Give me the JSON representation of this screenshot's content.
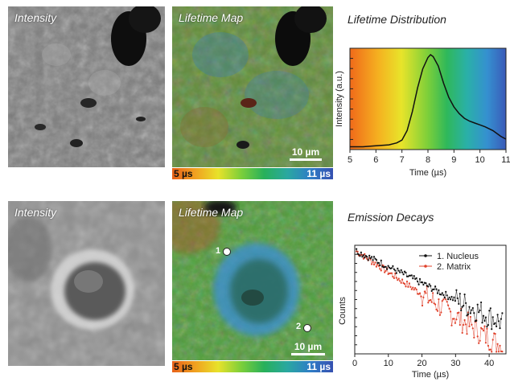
{
  "top_row": {
    "intensity_label": "Intensity",
    "lifetime_label": "Lifetime Map",
    "scale_bar": "10 µm",
    "colorbar": {
      "min_label": "5 µs",
      "max_label": "11 µs"
    },
    "distribution_title": "Lifetime Distribution"
  },
  "bottom_row": {
    "intensity_label": "Intensity",
    "lifetime_label": "Lifetime Map",
    "scale_bar": "10 µm",
    "marker_1": "1",
    "marker_2": "2",
    "colorbar": {
      "min_label": "5 µs",
      "max_label": "11 µs"
    },
    "decay_title": "Emission Decays"
  },
  "chart_data": [
    {
      "type": "line",
      "title": "Lifetime Distribution",
      "xlabel": "Time (µs)",
      "ylabel": "Intensity (a.u.)",
      "xlim": [
        5,
        11
      ],
      "xticks": [
        5,
        6,
        7,
        8,
        9,
        10,
        11
      ],
      "x": [
        5.0,
        5.5,
        6.0,
        6.5,
        6.8,
        7.0,
        7.2,
        7.4,
        7.6,
        7.8,
        8.0,
        8.1,
        8.2,
        8.4,
        8.6,
        8.8,
        9.0,
        9.2,
        9.4,
        9.6,
        9.8,
        10.0,
        10.2,
        10.5,
        10.8,
        11.0
      ],
      "y": [
        0.03,
        0.03,
        0.04,
        0.05,
        0.07,
        0.1,
        0.2,
        0.4,
        0.65,
        0.85,
        0.97,
        1.0,
        0.98,
        0.88,
        0.7,
        0.55,
        0.45,
        0.38,
        0.33,
        0.3,
        0.28,
        0.26,
        0.24,
        0.2,
        0.14,
        0.11
      ],
      "background": "rainbow gradient 5–11 µs"
    },
    {
      "type": "scatter",
      "title": "Emission Decays",
      "xlabel": "Time (µs)",
      "ylabel": "Counts",
      "xlim": [
        0,
        45
      ],
      "xticks": [
        0,
        10,
        20,
        30,
        40
      ],
      "yscale": "log",
      "legend_placement": "top-right",
      "series": [
        {
          "name": "1. Nucleus",
          "color": "#111111",
          "tau": 12,
          "noise_onset": 30
        },
        {
          "name": "2. Matrix",
          "color": "#e0402a",
          "tau": 9,
          "noise_onset": 20
        }
      ]
    }
  ],
  "colors": {
    "nucleus": "#111111",
    "matrix": "#e0402a"
  }
}
